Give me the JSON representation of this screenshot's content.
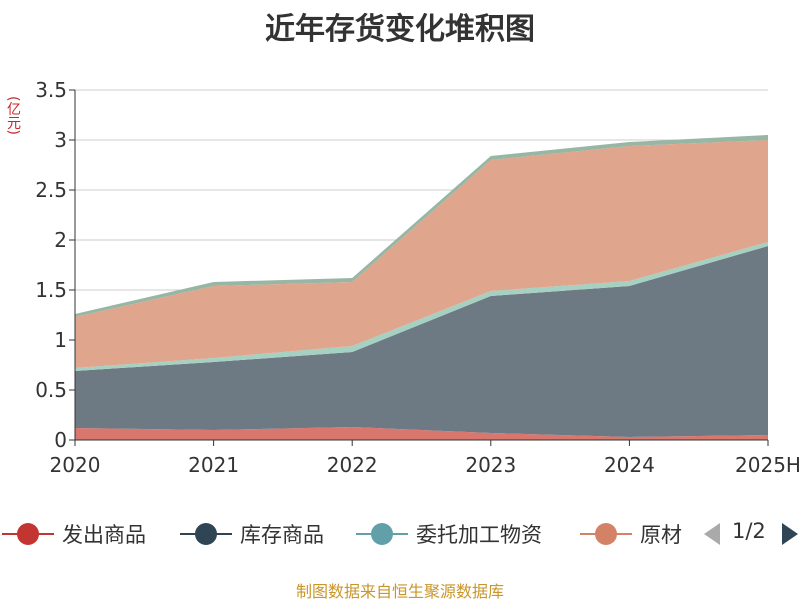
{
  "title": "近年存货变化堆积图",
  "unit": "(亿元)",
  "source": "制图数据来自恒生聚源数据库",
  "pager": {
    "text": "1/2"
  },
  "legend": [
    {
      "name": "发出商品",
      "color": "#c23531"
    },
    {
      "name": "库存商品",
      "color": "#2f4554"
    },
    {
      "name": "委托加工物资",
      "color": "#61a0a8"
    },
    {
      "name": "原材料",
      "color": "#d48265"
    }
  ],
  "chart_data": {
    "type": "area",
    "stacked": true,
    "categories": [
      "2020",
      "2021",
      "2022",
      "2023",
      "2024",
      "2025H"
    ],
    "ylim": [
      0,
      3.5
    ],
    "yticks": [
      "0",
      "0.5",
      "1",
      "1.5",
      "2",
      "2.5",
      "3",
      "3.5"
    ],
    "grid": true,
    "series": [
      {
        "name": "发出商品",
        "color": "#d9776f",
        "values": [
          0.12,
          0.1,
          0.13,
          0.07,
          0.03,
          0.05
        ]
      },
      {
        "name": "库存商品",
        "color": "#6d7a84",
        "values": [
          0.57,
          0.68,
          0.75,
          1.37,
          1.51,
          1.89
        ]
      },
      {
        "name": "委托加工物资",
        "color": "#a6d0c2",
        "values": [
          0.03,
          0.04,
          0.06,
          0.05,
          0.05,
          0.04
        ]
      },
      {
        "name": "原材料",
        "color": "#dfa58d",
        "values": [
          0.51,
          0.72,
          0.64,
          1.31,
          1.35,
          1.02
        ]
      },
      {
        "name": "",
        "color": "#97b6a3",
        "values": [
          0.03,
          0.04,
          0.04,
          0.04,
          0.04,
          0.05
        ]
      }
    ]
  }
}
